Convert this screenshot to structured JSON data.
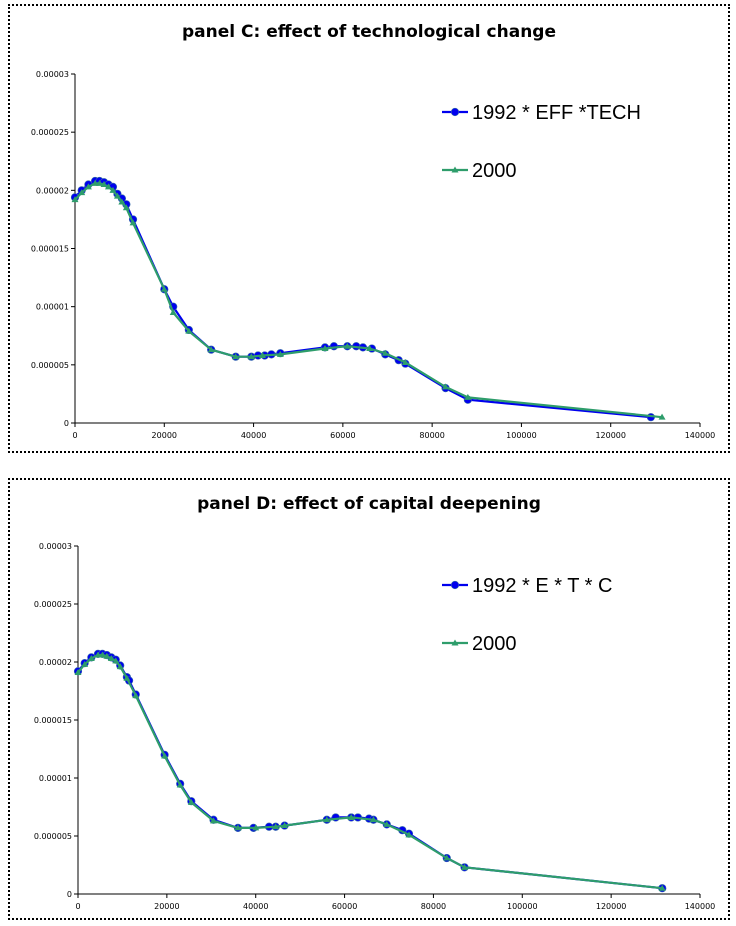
{
  "chart_data": [
    {
      "type": "line",
      "title": "panel C: effect of technological change",
      "xlabel": "",
      "ylabel": "",
      "xlim": [
        0,
        140000
      ],
      "ylim": [
        0,
        3e-05
      ],
      "x_ticks": [
        "0",
        "20000",
        "40000",
        "60000",
        "80000",
        "100000",
        "120000",
        "140000"
      ],
      "y_ticks": [
        "0",
        "0.000005",
        "0.00001",
        "0.000015",
        "0.00002",
        "0.000025",
        "0.00003"
      ],
      "legend_position": "top-right",
      "series": [
        {
          "name": "1992 * EFF *TECH",
          "color": "#0000ee",
          "marker": "circle",
          "x": [
            0,
            1500,
            3000,
            4500,
            5500,
            6500,
            7500,
            8500,
            9500,
            10500,
            11500,
            13000,
            20000,
            22000,
            25500,
            30500,
            36000,
            39500,
            41000,
            42500,
            44000,
            46000,
            56000,
            58000,
            61000,
            63000,
            64500,
            66500,
            69500,
            72500,
            74000,
            83000,
            88000,
            129000
          ],
          "y": [
            1.94e-05,
            2e-05,
            2.05e-05,
            2.08e-05,
            2.08e-05,
            2.07e-05,
            2.05e-05,
            2.03e-05,
            1.97e-05,
            1.93e-05,
            1.88e-05,
            1.75e-05,
            1.15e-05,
            1e-05,
            8e-06,
            6.3e-06,
            5.7e-06,
            5.7e-06,
            5.8e-06,
            5.8e-06,
            5.9e-06,
            6e-06,
            6.5e-06,
            6.6e-06,
            6.6e-06,
            6.6e-06,
            6.5e-06,
            6.4e-06,
            5.9e-06,
            5.4e-06,
            5.1e-06,
            3e-06,
            2e-06,
            5e-07
          ]
        },
        {
          "name": "2000",
          "color": "#2e9d6b",
          "marker": "triangle",
          "x": [
            0,
            1500,
            3000,
            4500,
            5500,
            6500,
            7500,
            8500,
            9500,
            10500,
            11500,
            13000,
            20000,
            22000,
            25500,
            30500,
            36000,
            39500,
            42000,
            46000,
            56000,
            61000,
            66000,
            69500,
            74000,
            83000,
            88000,
            131500
          ],
          "y": [
            1.92e-05,
            1.98e-05,
            2.03e-05,
            2.06e-05,
            2.06e-05,
            2.05e-05,
            2.03e-05,
            2e-05,
            1.95e-05,
            1.9e-05,
            1.85e-05,
            1.72e-05,
            1.15e-05,
            9.5e-06,
            7.9e-06,
            6.3e-06,
            5.7e-06,
            5.7e-06,
            5.8e-06,
            5.9e-06,
            6.4e-06,
            6.6e-06,
            6.4e-06,
            6e-06,
            5.2e-06,
            3.1e-06,
            2.2e-06,
            5e-07
          ]
        }
      ]
    },
    {
      "type": "line",
      "title": "panel D: effect of capital deepening",
      "xlabel": "",
      "ylabel": "",
      "xlim": [
        0,
        140000
      ],
      "ylim": [
        0,
        3e-05
      ],
      "x_ticks": [
        "0",
        "20000",
        "40000",
        "60000",
        "80000",
        "100000",
        "120000",
        "140000"
      ],
      "y_ticks": [
        "0",
        "0.000005",
        "0.00001",
        "0.000015",
        "0.00002",
        "0.000025",
        "0.00003"
      ],
      "legend_position": "top-right",
      "series": [
        {
          "name": "1992 * E * T * C",
          "color": "#0000ee",
          "marker": "circle",
          "x": [
            0,
            1500,
            3000,
            4500,
            5500,
            6500,
            7500,
            8500,
            9500,
            11000,
            11500,
            13000,
            19500,
            23000,
            25500,
            30500,
            36000,
            39500,
            43000,
            44500,
            46500,
            56000,
            58000,
            61500,
            63000,
            65500,
            66500,
            69500,
            73000,
            74500,
            83000,
            87000,
            131500
          ],
          "y": [
            1.92e-05,
            1.99e-05,
            2.04e-05,
            2.07e-05,
            2.07e-05,
            2.06e-05,
            2.04e-05,
            2.02e-05,
            1.97e-05,
            1.87e-05,
            1.84e-05,
            1.72e-05,
            1.2e-05,
            9.5e-06,
            8e-06,
            6.4e-06,
            5.7e-06,
            5.7e-06,
            5.8e-06,
            5.8e-06,
            5.9e-06,
            6.4e-06,
            6.6e-06,
            6.6e-06,
            6.6e-06,
            6.5e-06,
            6.4e-06,
            6e-06,
            5.5e-06,
            5.2e-06,
            3.1e-06,
            2.3e-06,
            5e-07
          ]
        },
        {
          "name": "2000",
          "color": "#2e9d6b",
          "marker": "triangle",
          "x": [
            0,
            1500,
            3000,
            4500,
            5500,
            6500,
            7500,
            8500,
            9500,
            11000,
            13000,
            19500,
            23000,
            25500,
            30500,
            36000,
            40000,
            44500,
            46500,
            56000,
            61500,
            66500,
            69500,
            74500,
            83000,
            87000,
            131500
          ],
          "y": [
            1.91e-05,
            1.98e-05,
            2.03e-05,
            2.06e-05,
            2.06e-05,
            2.05e-05,
            2.03e-05,
            2.01e-05,
            1.96e-05,
            1.86e-05,
            1.71e-05,
            1.19e-05,
            9.4e-06,
            7.9e-06,
            6.3e-06,
            5.7e-06,
            5.7e-06,
            5.8e-06,
            5.9e-06,
            6.4e-06,
            6.6e-06,
            6.4e-06,
            6e-06,
            5.1e-06,
            3.1e-06,
            2.3e-06,
            5e-07
          ]
        }
      ]
    }
  ]
}
